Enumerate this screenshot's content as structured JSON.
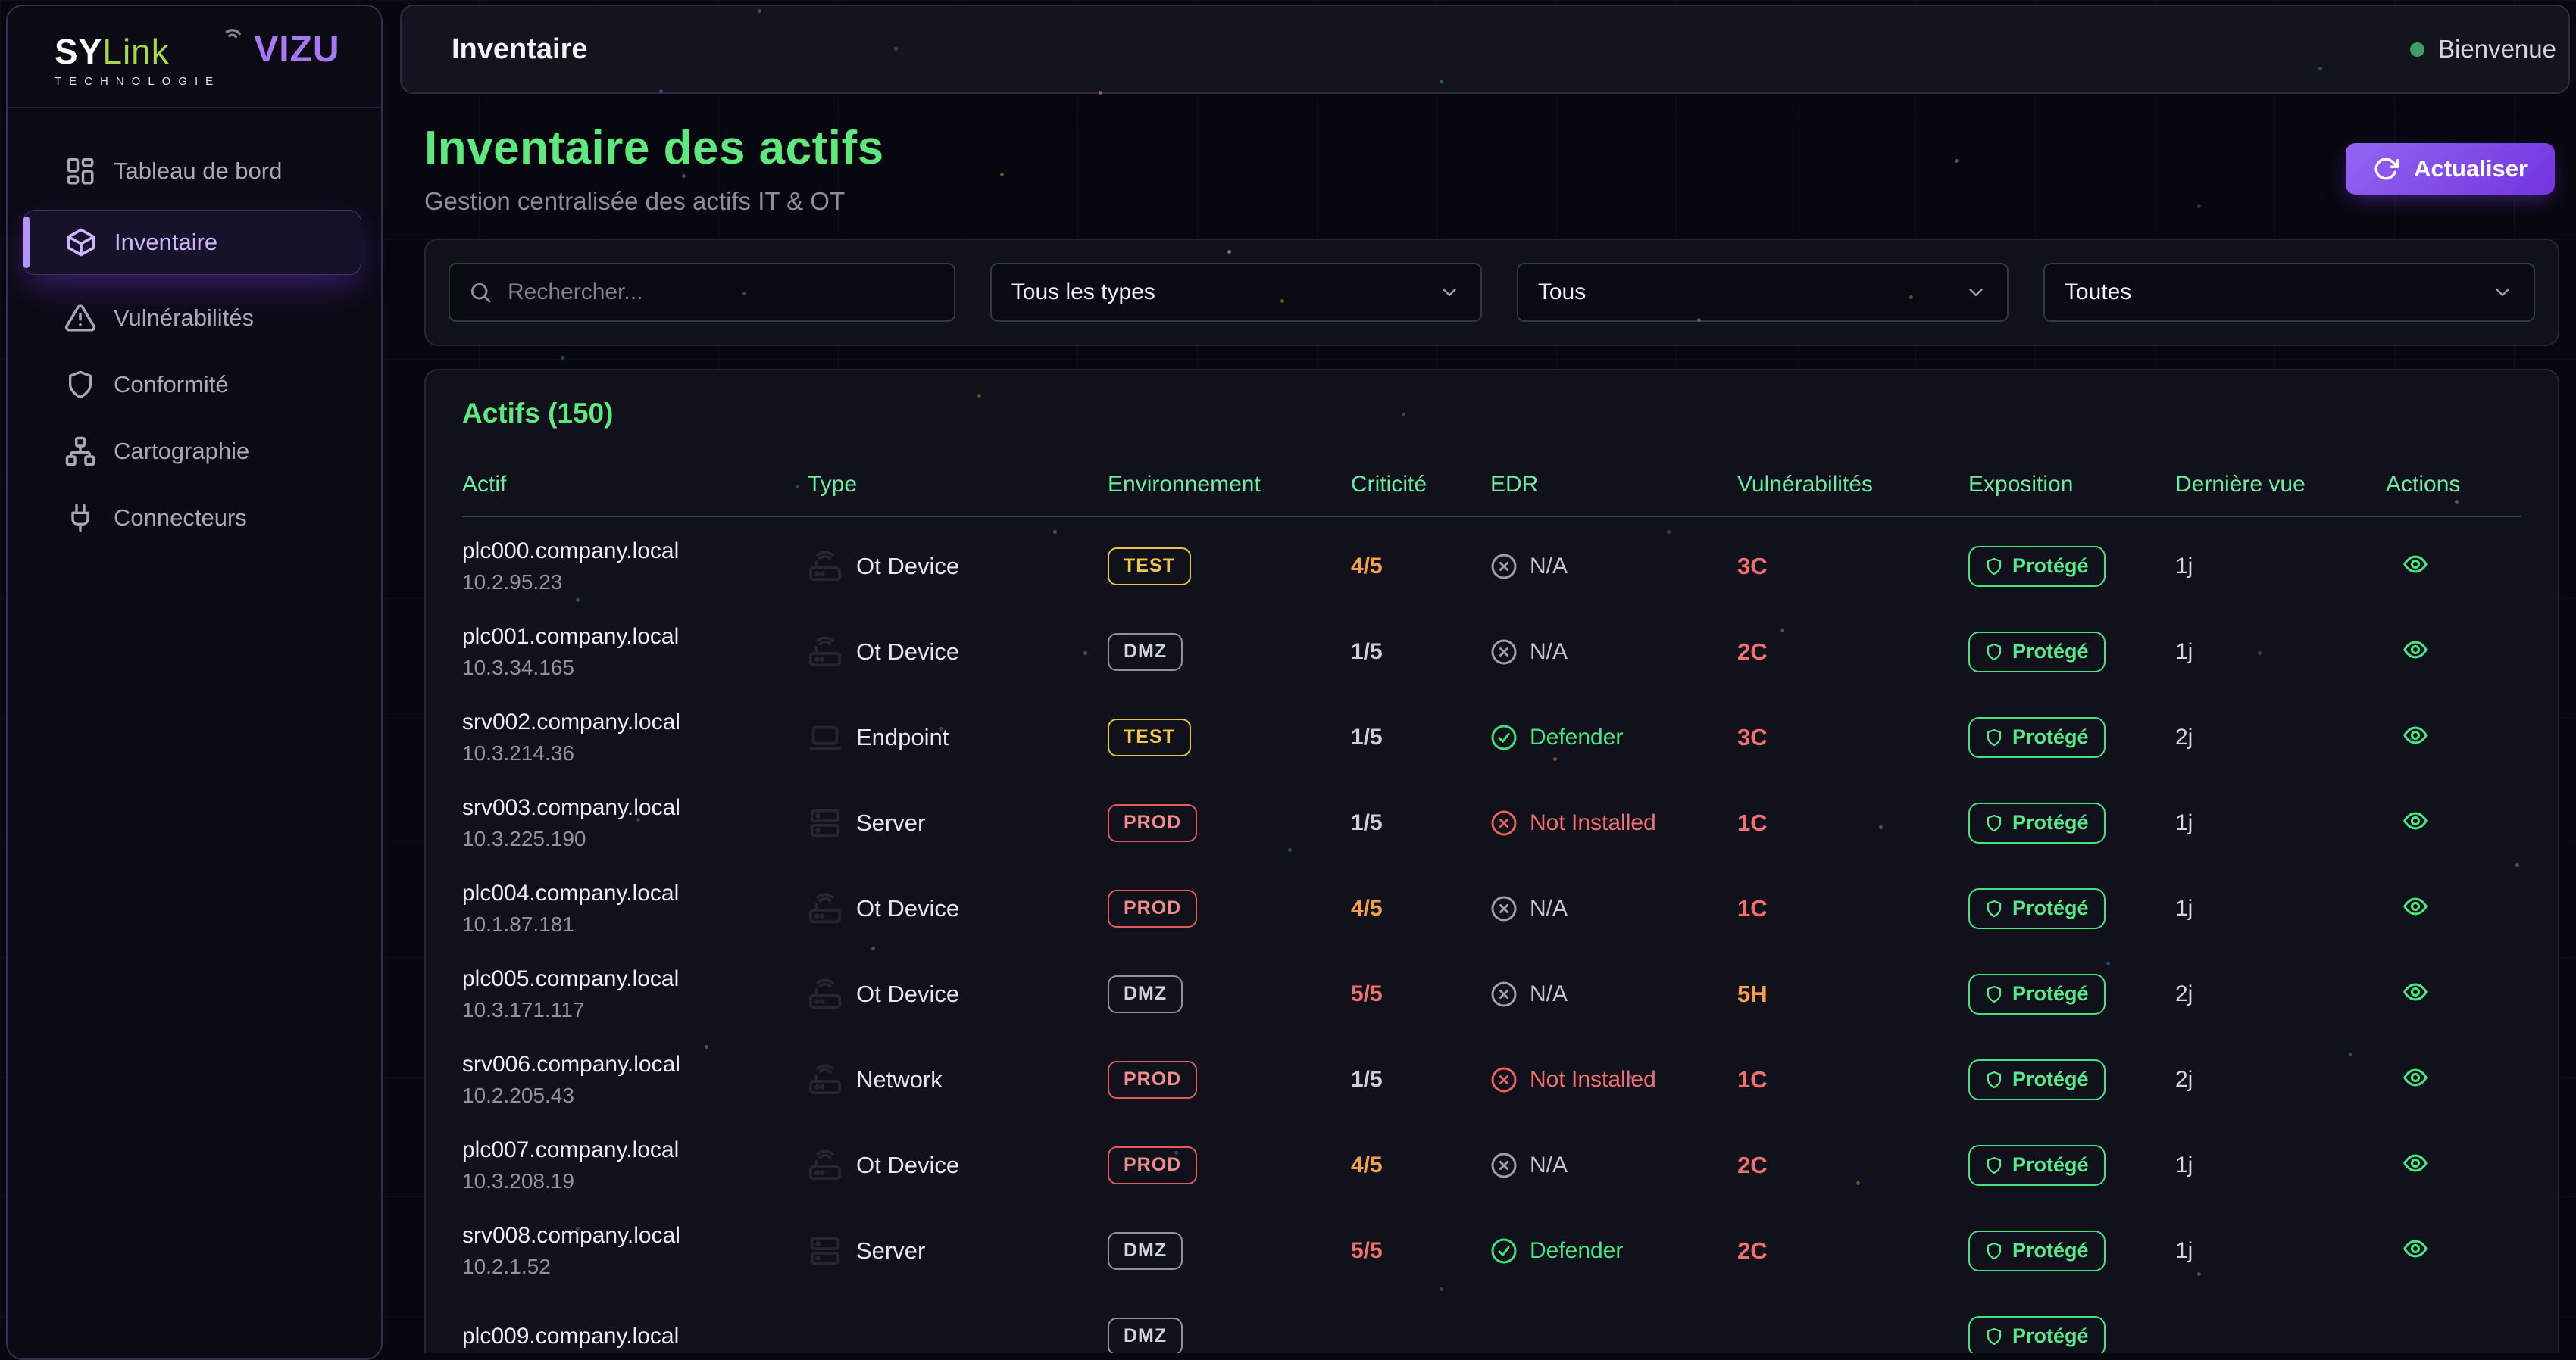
{
  "brand": {
    "sy": "SY",
    "link": "Link",
    "tagline": "TECHNOLOGIE",
    "app": "VIZU"
  },
  "sidebar": {
    "items": [
      {
        "label": "Tableau de bord",
        "icon": "dashboard-icon",
        "active": false
      },
      {
        "label": "Inventaire",
        "icon": "package-icon",
        "active": true
      },
      {
        "label": "Vulnérabilités",
        "icon": "alert-triangle-icon",
        "active": false
      },
      {
        "label": "Conformité",
        "icon": "shield-icon",
        "active": false
      },
      {
        "label": "Cartographie",
        "icon": "network-icon",
        "active": false
      },
      {
        "label": "Connecteurs",
        "icon": "plug-icon",
        "active": false
      }
    ]
  },
  "topbar": {
    "title": "Inventaire",
    "welcome": "Bienvenue",
    "status_dot_color": "#3f9e63"
  },
  "page": {
    "title": "Inventaire des actifs",
    "subtitle": "Gestion centralisée des actifs IT & OT",
    "refresh_label": "Actualiser"
  },
  "filters": {
    "search_placeholder": "Rechercher...",
    "type_value": "Tous les types",
    "status_value": "Tous",
    "env_value": "Toutes"
  },
  "table": {
    "title": "Actifs (150)",
    "columns": [
      "Actif",
      "Type",
      "Environnement",
      "Criticité",
      "EDR",
      "Vulnérabilités",
      "Exposition",
      "Dernière vue",
      "Actions"
    ],
    "rows": [
      {
        "host": "plc000.company.local",
        "ip": "10.2.95.23",
        "type": "Ot Device",
        "type_icon": "router-icon",
        "env": "TEST",
        "env_class": "test",
        "crit": "4/5",
        "crit_class": "orange",
        "edr": "N/A",
        "edr_status": "na",
        "vuln": "3C",
        "vuln_class": "red",
        "expo": "Protégé",
        "last": "1j",
        "eye": true
      },
      {
        "host": "plc001.company.local",
        "ip": "10.3.34.165",
        "type": "Ot Device",
        "type_icon": "router-icon",
        "env": "DMZ",
        "env_class": "dmz",
        "crit": "1/5",
        "crit_class": "neutral",
        "edr": "N/A",
        "edr_status": "na",
        "vuln": "2C",
        "vuln_class": "red",
        "expo": "Protégé",
        "last": "1j",
        "eye": true
      },
      {
        "host": "srv002.company.local",
        "ip": "10.3.214.36",
        "type": "Endpoint",
        "type_icon": "laptop-icon",
        "env": "TEST",
        "env_class": "test",
        "crit": "1/5",
        "crit_class": "neutral",
        "edr": "Defender",
        "edr_status": "ok",
        "vuln": "3C",
        "vuln_class": "red",
        "expo": "Protégé",
        "last": "2j",
        "eye": true
      },
      {
        "host": "srv003.company.local",
        "ip": "10.3.225.190",
        "type": "Server",
        "type_icon": "server-icon",
        "env": "PROD",
        "env_class": "prod",
        "crit": "1/5",
        "crit_class": "neutral",
        "edr": "Not Installed",
        "edr_status": "missing",
        "vuln": "1C",
        "vuln_class": "red",
        "expo": "Protégé",
        "last": "1j",
        "eye": true
      },
      {
        "host": "plc004.company.local",
        "ip": "10.1.87.181",
        "type": "Ot Device",
        "type_icon": "router-icon",
        "env": "PROD",
        "env_class": "prod",
        "crit": "4/5",
        "crit_class": "orange",
        "edr": "N/A",
        "edr_status": "na",
        "vuln": "1C",
        "vuln_class": "red",
        "expo": "Protégé",
        "last": "1j",
        "eye": true
      },
      {
        "host": "plc005.company.local",
        "ip": "10.3.171.117",
        "type": "Ot Device",
        "type_icon": "router-icon",
        "env": "DMZ",
        "env_class": "dmz",
        "crit": "5/5",
        "crit_class": "red",
        "edr": "N/A",
        "edr_status": "na",
        "vuln": "5H",
        "vuln_class": "orange",
        "expo": "Protégé",
        "last": "2j",
        "eye": true
      },
      {
        "host": "srv006.company.local",
        "ip": "10.2.205.43",
        "type": "Network",
        "type_icon": "router-icon",
        "env": "PROD",
        "env_class": "prod",
        "crit": "1/5",
        "crit_class": "neutral",
        "edr": "Not Installed",
        "edr_status": "missing",
        "vuln": "1C",
        "vuln_class": "red",
        "expo": "Protégé",
        "last": "2j",
        "eye": true
      },
      {
        "host": "plc007.company.local",
        "ip": "10.3.208.19",
        "type": "Ot Device",
        "type_icon": "router-icon",
        "env": "PROD",
        "env_class": "prod",
        "crit": "4/5",
        "crit_class": "orange",
        "edr": "N/A",
        "edr_status": "na",
        "vuln": "2C",
        "vuln_class": "red",
        "expo": "Protégé",
        "last": "1j",
        "eye": true
      },
      {
        "host": "srv008.company.local",
        "ip": "10.2.1.52",
        "type": "Server",
        "type_icon": "server-icon",
        "env": "DMZ",
        "env_class": "dmz",
        "crit": "5/5",
        "crit_class": "red",
        "edr": "Defender",
        "edr_status": "ok",
        "vuln": "2C",
        "vuln_class": "red",
        "expo": "Protégé",
        "last": "1j",
        "eye": true
      },
      {
        "host": "plc009.company.local",
        "ip": "",
        "type": "",
        "type_icon": "",
        "env": "DMZ",
        "env_class": "dmz",
        "crit": "",
        "crit_class": "neutral",
        "edr": "",
        "edr_status": "",
        "vuln": "",
        "vuln_class": "red",
        "expo": "Protégé",
        "last": "",
        "eye": false
      }
    ]
  },
  "colors": {
    "accent_green": "#5ee87f",
    "table_header_green": "#6fe9a0",
    "protected_green": "#42e27e",
    "badge_yellow": "#e8c44c",
    "badge_red": "#e25c5c",
    "badge_gray": "#8e93a0",
    "crit_orange": "#f5a04c",
    "crit_red": "#f07070",
    "purple_accent": "#a678f2",
    "button_gradient_start": "#9266f0",
    "button_gradient_end": "#7434e0",
    "logo_lime": "#a5d84a"
  }
}
